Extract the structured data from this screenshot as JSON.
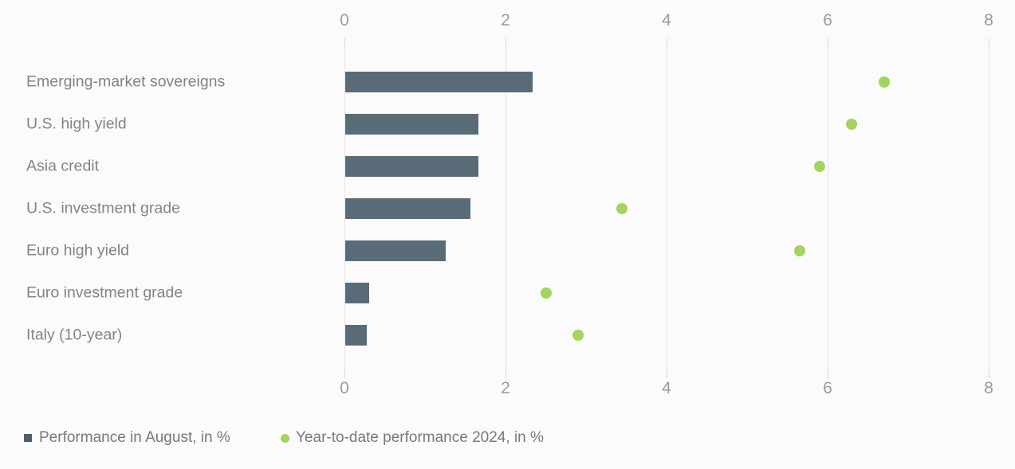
{
  "chart_data": {
    "type": "bar",
    "orientation": "horizontal",
    "title": "",
    "categories": [
      "Emerging-market sovereigns",
      "U.S. high yield",
      "Asia credit",
      "U.S. investment grade",
      "Euro high yield",
      "Euro investment grade",
      "Italy (10-year)"
    ],
    "series": [
      {
        "name": "Performance in August, in %",
        "type": "bar",
        "marker": "square",
        "color": "#5a6b78",
        "values": [
          2.33,
          1.65,
          1.65,
          1.55,
          1.25,
          0.3,
          0.27
        ]
      },
      {
        "name": "Year-to-date performance 2024, in %",
        "type": "scatter",
        "marker": "circle",
        "color": "#a2d45e",
        "values": [
          6.7,
          6.3,
          5.9,
          3.45,
          5.65,
          2.5,
          2.9
        ]
      }
    ],
    "x_axis": {
      "min": 0,
      "max": 8,
      "ticks": [
        0,
        2,
        4,
        6,
        8
      ],
      "tick_labels": [
        "0",
        "2",
        "4",
        "6",
        "8"
      ],
      "label_position": "top-and-bottom"
    },
    "grid": true,
    "legend_position": "bottom-left"
  },
  "colors": {
    "background": "#fbfbfb",
    "bar": "#5a6b78",
    "dot": "#a2d45e",
    "gridline": "#e4e4e4",
    "axis_text": "#9b9b9b",
    "category_text": "#818488",
    "legend_text": "#76797c"
  }
}
